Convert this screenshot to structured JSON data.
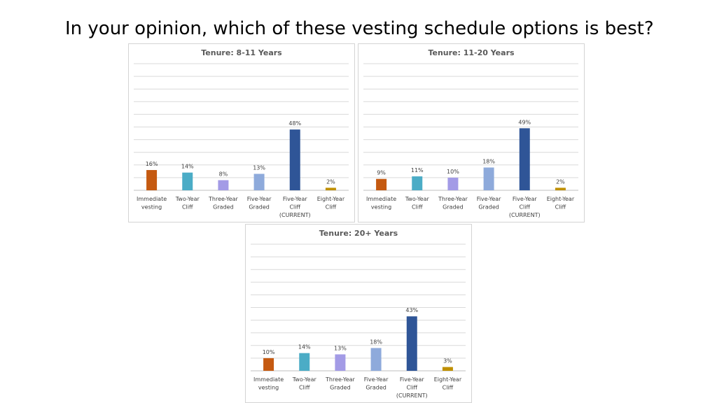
{
  "slide": {
    "title": "In your opinion, which of these vesting schedule options is best?"
  },
  "colors": [
    "#c55a11",
    "#4bacc6",
    "#a39be6",
    "#8eaadb",
    "#2f5597",
    "#bf9000"
  ],
  "chart_data": [
    {
      "type": "bar",
      "title": "Tenure: 8-11 Years",
      "categories": [
        [
          "Immediate",
          "vesting"
        ],
        [
          "Two-Year",
          "Cliff"
        ],
        [
          "Three-Year",
          "Graded"
        ],
        [
          "Five-Year",
          "Graded"
        ],
        [
          "Five-Year",
          "Cliff",
          "(CURRENT)"
        ],
        [
          "Eight-Year",
          "Cliff"
        ]
      ],
      "values": [
        16,
        14,
        8,
        13,
        48,
        2
      ],
      "labels": [
        "16%",
        "14%",
        "8%",
        "13%",
        "48%",
        "2%"
      ],
      "ylim": [
        0,
        100
      ],
      "grid": true
    },
    {
      "type": "bar",
      "title": "Tenure: 11-20 Years",
      "categories": [
        [
          "Immediate",
          "vesting"
        ],
        [
          "Two-Year",
          "Cliff"
        ],
        [
          "Three-Year",
          "Graded"
        ],
        [
          "Five-Year",
          "Graded"
        ],
        [
          "Five-Year",
          "Cliff",
          "(CURRENT)"
        ],
        [
          "Eight-Year",
          "Cliff"
        ]
      ],
      "values": [
        9,
        11,
        10,
        18,
        49,
        2
      ],
      "labels": [
        "9%",
        "11%",
        "10%",
        "18%",
        "49%",
        "2%"
      ],
      "ylim": [
        0,
        100
      ],
      "grid": true
    },
    {
      "type": "bar",
      "title": "Tenure: 20+ Years",
      "categories": [
        [
          "Immediate",
          "vesting"
        ],
        [
          "Two-Year",
          "Cliff"
        ],
        [
          "Three-Year",
          "Graded"
        ],
        [
          "Five-Year",
          "Graded"
        ],
        [
          "Five-Year",
          "Cliff",
          "(CURRENT)"
        ],
        [
          "Eight-Year",
          "Cliff"
        ]
      ],
      "values": [
        10,
        14,
        13,
        18,
        43,
        3
      ],
      "labels": [
        "10%",
        "14%",
        "13%",
        "18%",
        "43%",
        "3%"
      ],
      "ylim": [
        0,
        100
      ],
      "grid": true
    }
  ]
}
